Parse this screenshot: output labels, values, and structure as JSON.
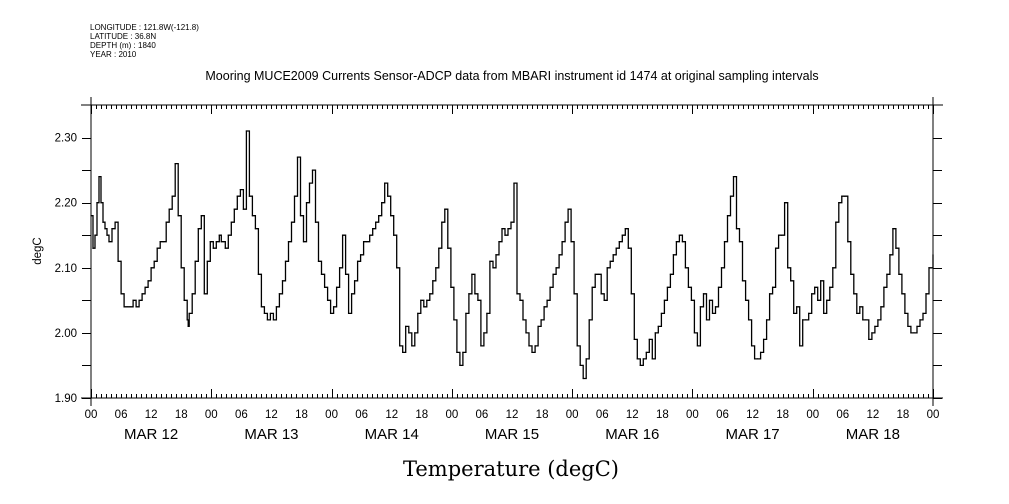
{
  "header": {
    "longitude": "LONGITUDE : 121.8W(-121.8)",
    "latitude": "LATITUDE : 36.8N",
    "depth": "DEPTH (m) : 1840",
    "year": "YEAR : 2010"
  },
  "chart_data": {
    "type": "line",
    "title": "Mooring MUCE2009 Currents Sensor-ADCP data from MBARI instrument id 1474 at original sampling intervals",
    "xlabel": "Temperature (degC)",
    "ylabel": "degC",
    "ylim": [
      1.9,
      2.35
    ],
    "xlim_hours": [
      0,
      168
    ],
    "y_ticks": [
      1.9,
      1.95,
      2.0,
      2.05,
      2.1,
      2.15,
      2.2,
      2.25,
      2.3
    ],
    "y_tick_labels": [
      "1.90",
      "2.00",
      "2.10",
      "2.20",
      "2.30"
    ],
    "y_tick_label_values": [
      1.9,
      2.0,
      2.1,
      2.2,
      2.3
    ],
    "x_tick_labels": [
      "00",
      "06",
      "12",
      "18",
      "00",
      "06",
      "12",
      "18",
      "00",
      "06",
      "12",
      "18",
      "00",
      "06",
      "12",
      "18",
      "00",
      "06",
      "12",
      "18",
      "00",
      "06",
      "12",
      "18",
      "00",
      "06",
      "12",
      "18",
      "00"
    ],
    "day_labels": [
      "MAR 12",
      "MAR 13",
      "MAR 14",
      "MAR 15",
      "MAR 16",
      "MAR 17",
      "MAR 18"
    ],
    "grid": false,
    "series": [
      {
        "name": "Temperature",
        "x_hours": [
          0,
          0.4,
          0.8,
          1.2,
          1.6,
          2.0,
          2.4,
          2.8,
          3.2,
          3.6,
          4.2,
          4.8,
          5.4,
          6.0,
          6.6,
          7.2,
          7.8,
          8.4,
          9.0,
          9.6,
          10.2,
          10.8,
          11.4,
          12.0,
          12.6,
          13.2,
          13.8,
          14.4,
          15.0,
          15.6,
          16.2,
          16.8,
          17.4,
          18.0,
          18.6,
          19.2,
          19.4,
          19.6,
          20.2,
          20.8,
          21.4,
          22.0,
          22.6,
          23.2,
          23.8,
          24.4,
          25.0,
          25.6,
          26.0,
          26.4,
          26.8,
          27.4,
          28.0,
          28.6,
          29.2,
          29.8,
          30.4,
          31.0,
          31.6,
          32.2,
          32.8,
          33.4,
          34.0,
          34.6,
          35.2,
          35.8,
          36.4,
          37.0,
          37.6,
          38.2,
          38.8,
          39.4,
          40.0,
          40.6,
          41.2,
          41.8,
          42.4,
          43.0,
          43.6,
          44.2,
          44.8,
          45.4,
          46.0,
          46.6,
          47.2,
          47.8,
          48.4,
          49.0,
          49.6,
          50.2,
          50.8,
          51.4,
          52.0,
          52.6,
          53.2,
          53.8,
          54.4,
          55.0,
          55.6,
          56.2,
          56.8,
          57.4,
          58.0,
          58.6,
          59.2,
          59.8,
          60.4,
          61.0,
          61.6,
          62.2,
          62.8,
          63.4,
          64.0,
          64.6,
          65.2,
          65.8,
          66.4,
          67.0,
          67.6,
          68.2,
          68.8,
          69.4,
          70.0,
          70.6,
          71.2,
          71.8,
          72.4,
          73.0,
          73.6,
          74.2,
          74.8,
          75.4,
          76.0,
          76.6,
          77.2,
          77.8,
          78.4,
          79.0,
          79.6,
          80.2,
          80.8,
          81.4,
          82.0,
          82.6,
          83.2,
          83.8,
          84.4,
          85.0,
          85.6,
          86.2,
          86.8,
          87.4,
          88.0,
          88.6,
          89.2,
          89.8,
          90.4,
          91.0,
          91.6,
          92.2,
          92.8,
          93.4,
          94.0,
          94.6,
          95.2,
          95.8,
          96.4,
          97.0,
          97.6,
          98.2,
          98.8,
          99.4,
          100.0,
          100.6,
          101.2,
          101.8,
          102.4,
          103.0,
          103.6,
          104.2,
          104.8,
          105.4,
          106.0,
          106.6,
          107.2,
          107.8,
          108.4,
          109.0,
          109.6,
          110.2,
          110.8,
          111.4,
          112.0,
          112.6,
          113.2,
          113.8,
          114.4,
          115.0,
          115.6,
          116.2,
          116.8,
          117.4,
          118.0,
          118.6,
          119.2,
          119.8,
          120.4,
          121.0,
          121.6,
          122.2,
          122.8,
          123.4,
          124.0,
          124.6,
          125.2,
          125.8,
          126.4,
          127.0,
          127.6,
          128.2,
          128.8,
          129.4,
          130.0,
          130.6,
          131.2,
          131.8,
          132.4,
          133.0,
          133.6,
          134.2,
          134.8,
          135.4,
          136.0,
          136.6,
          137.2,
          137.8,
          138.4,
          139.0,
          139.6,
          140.2,
          140.8,
          141.4,
          142.0,
          142.6,
          143.2,
          143.8,
          144.4,
          145.0,
          145.6,
          146.2,
          146.8,
          147.4,
          148.0,
          148.6,
          149.2,
          149.8,
          150.4,
          151.0,
          151.6,
          152.2,
          152.8,
          153.4,
          154.0,
          154.6,
          155.2,
          155.8,
          156.4,
          157.0,
          157.6,
          158.2,
          158.8,
          159.4,
          160.0,
          160.6,
          161.2,
          161.8,
          162.4,
          163.0,
          163.6,
          164.2,
          164.8,
          165.4,
          166.0,
          166.6,
          167.2,
          168.0
        ],
        "values": [
          2.18,
          2.13,
          2.15,
          2.2,
          2.24,
          2.2,
          2.17,
          2.16,
          2.15,
          2.14,
          2.16,
          2.17,
          2.11,
          2.06,
          2.04,
          2.04,
          2.04,
          2.05,
          2.04,
          2.05,
          2.06,
          2.07,
          2.08,
          2.1,
          2.11,
          2.13,
          2.14,
          2.14,
          2.17,
          2.19,
          2.21,
          2.26,
          2.18,
          2.1,
          2.05,
          2.02,
          2.01,
          2.03,
          2.06,
          2.11,
          2.16,
          2.18,
          2.06,
          2.11,
          2.14,
          2.13,
          2.14,
          2.15,
          2.14,
          2.14,
          2.13,
          2.15,
          2.17,
          2.19,
          2.21,
          2.22,
          2.19,
          2.31,
          2.21,
          2.18,
          2.16,
          2.09,
          2.04,
          2.03,
          2.02,
          2.03,
          2.02,
          2.04,
          2.06,
          2.08,
          2.11,
          2.14,
          2.17,
          2.21,
          2.27,
          2.18,
          2.14,
          2.2,
          2.23,
          2.25,
          2.17,
          2.11,
          2.09,
          2.07,
          2.05,
          2.03,
          2.04,
          2.07,
          2.1,
          2.15,
          2.09,
          2.03,
          2.06,
          2.08,
          2.11,
          2.12,
          2.14,
          2.14,
          2.15,
          2.16,
          2.17,
          2.18,
          2.2,
          2.23,
          2.21,
          2.18,
          2.15,
          2.1,
          1.98,
          1.97,
          2.01,
          2.0,
          1.98,
          2.0,
          2.03,
          2.05,
          2.04,
          2.05,
          2.06,
          2.08,
          2.1,
          2.13,
          2.17,
          2.19,
          2.13,
          2.07,
          2.02,
          1.97,
          1.95,
          1.97,
          2.03,
          2.06,
          2.09,
          2.06,
          2.05,
          1.98,
          2.0,
          2.03,
          2.11,
          2.1,
          2.12,
          2.14,
          2.16,
          2.15,
          2.16,
          2.17,
          2.23,
          2.06,
          2.05,
          2.02,
          2.0,
          1.98,
          1.97,
          1.98,
          2.01,
          2.02,
          2.04,
          2.05,
          2.07,
          2.09,
          2.1,
          2.12,
          2.14,
          2.17,
          2.19,
          2.14,
          2.06,
          1.98,
          1.95,
          1.93,
          1.96,
          2.02,
          2.07,
          2.09,
          2.09,
          2.06,
          2.05,
          2.1,
          2.11,
          2.12,
          2.13,
          2.14,
          2.15,
          2.16,
          2.13,
          2.06,
          1.99,
          1.96,
          1.95,
          1.96,
          1.97,
          1.99,
          1.96,
          2.0,
          2.01,
          2.03,
          2.05,
          2.07,
          2.09,
          2.12,
          2.14,
          2.15,
          2.14,
          2.1,
          2.07,
          2.05,
          2.0,
          1.98,
          2.04,
          2.06,
          2.02,
          2.05,
          2.03,
          2.04,
          2.07,
          2.1,
          2.14,
          2.18,
          2.21,
          2.24,
          2.16,
          2.14,
          2.08,
          2.05,
          2.02,
          1.98,
          1.96,
          1.96,
          1.97,
          1.99,
          2.02,
          2.06,
          2.07,
          2.13,
          2.15,
          2.15,
          2.2,
          2.1,
          2.08,
          2.03,
          2.04,
          1.98,
          2.02,
          2.02,
          2.03,
          2.06,
          2.07,
          2.05,
          2.08,
          2.03,
          2.05,
          2.07,
          2.1,
          2.17,
          2.2,
          2.21,
          2.21,
          2.14,
          2.09,
          2.06,
          2.03,
          2.04,
          2.02,
          2.02,
          1.99,
          2.0,
          2.01,
          2.02,
          2.04,
          2.07,
          2.09,
          2.12,
          2.16,
          2.13,
          2.09,
          2.06,
          2.03,
          2.01,
          2.0,
          2.0,
          2.01,
          2.02,
          2.03,
          2.06,
          2.1,
          2.12
        ]
      }
    ]
  }
}
